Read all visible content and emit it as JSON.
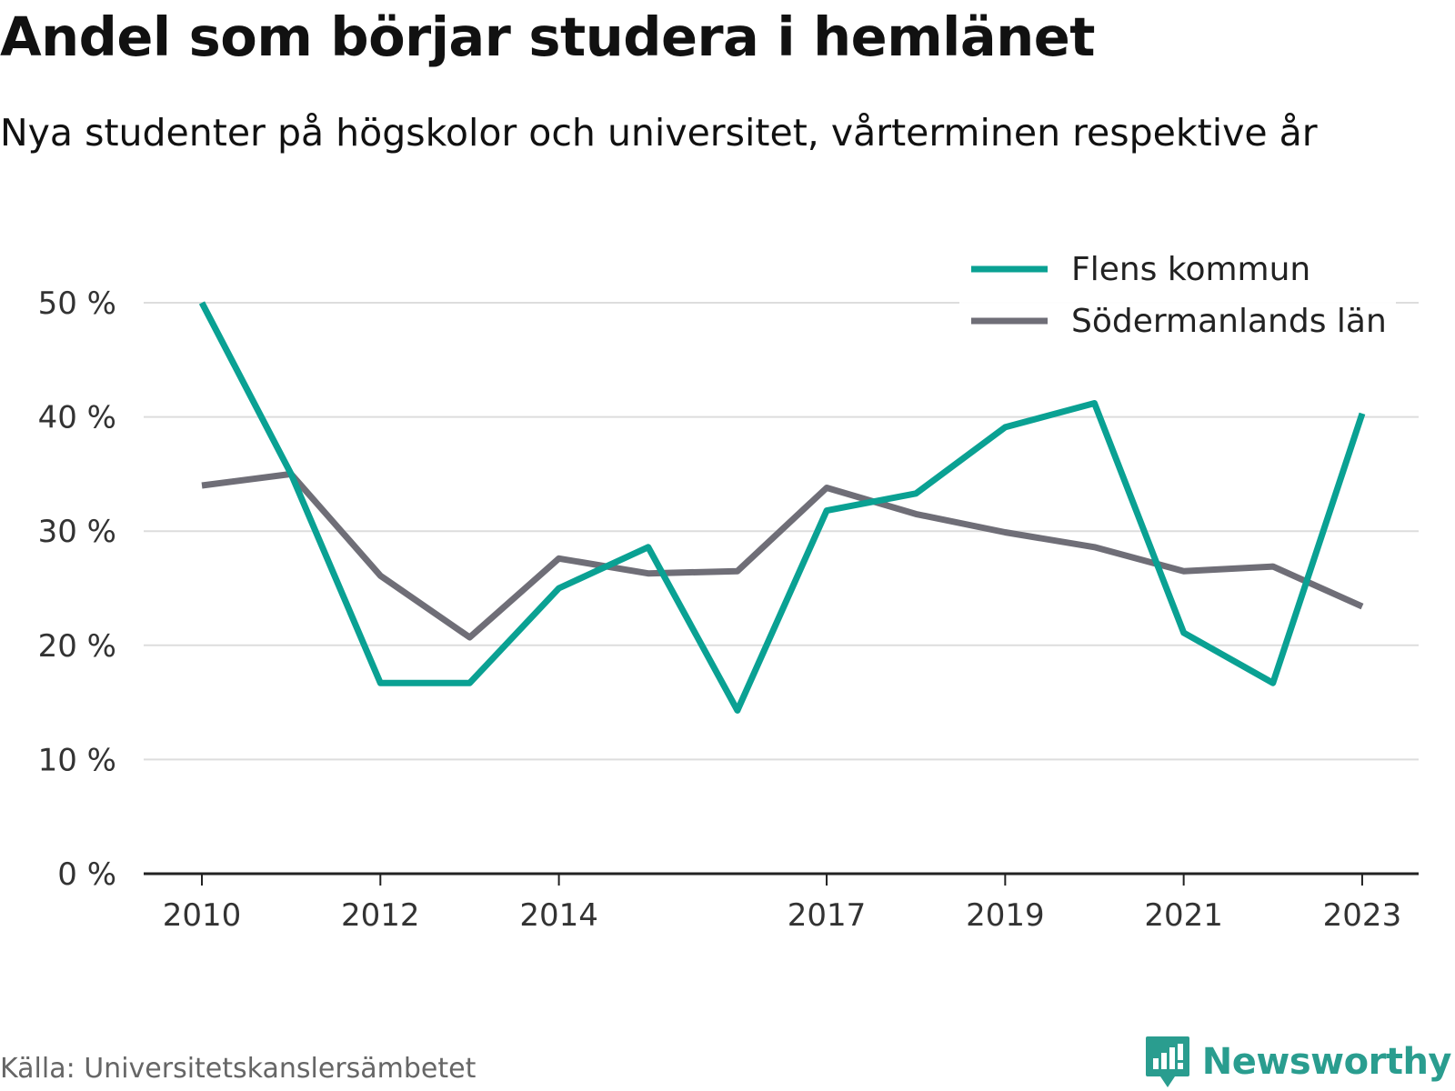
{
  "header": {
    "title": "Andel som börjar studera i hemlänet",
    "subtitle": "Nya studenter på högskolor och universitet, vårterminen respektive år"
  },
  "footer": {
    "source": "Källa: Universitetskanslersämbetet",
    "brand": "Newsworthy",
    "brand_logo_icon": "newsworthy-logo-icon"
  },
  "colors": {
    "flen": "#0aa193",
    "sodermanland": "#6f6e77",
    "grid": "#dddddd",
    "axis": "#222222",
    "brand": "#2a9d8f"
  },
  "chart_data": {
    "type": "line",
    "x": [
      2010,
      2011,
      2012,
      2013,
      2014,
      2015,
      2016,
      2017,
      2018,
      2019,
      2020,
      2021,
      2022,
      2023
    ],
    "x_tick_labels": [
      "2010",
      "2012",
      "2014",
      "2017",
      "2019",
      "2021",
      "2023"
    ],
    "y_tick_labels": [
      "0 %",
      "10 %",
      "20 %",
      "30 %",
      "40 %",
      "50 %"
    ],
    "ylim": [
      0,
      50
    ],
    "grid": true,
    "legend_position": "top-right",
    "series": [
      {
        "name": "Flens kommun",
        "values": [
          50.0,
          35.0,
          16.7,
          16.7,
          25.0,
          28.6,
          14.3,
          31.8,
          33.3,
          39.1,
          41.2,
          21.1,
          16.7,
          40.3
        ]
      },
      {
        "name": "Södermanlands län",
        "values": [
          34.0,
          35.0,
          26.1,
          20.7,
          27.6,
          26.3,
          26.5,
          33.8,
          31.5,
          29.9,
          28.6,
          26.5,
          26.9,
          23.4
        ]
      }
    ]
  }
}
